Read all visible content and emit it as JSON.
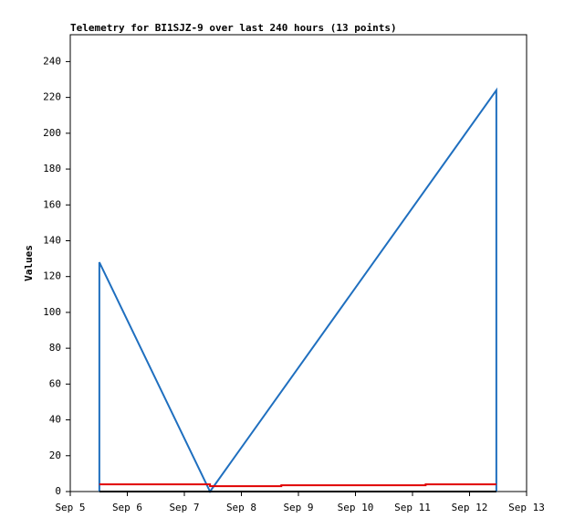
{
  "chart_data": {
    "type": "line",
    "title": "Telemetry for BI1SJZ-9 over last 240 hours (13 points)",
    "y_label": "Values",
    "xlim": [
      5,
      13
    ],
    "xticks": [
      {
        "value": 5,
        "label": "Sep 5"
      },
      {
        "value": 6,
        "label": "Sep 6"
      },
      {
        "value": 7,
        "label": "Sep 7"
      },
      {
        "value": 8,
        "label": "Sep 8"
      },
      {
        "value": 9,
        "label": "Sep 9"
      },
      {
        "value": 10,
        "label": "Sep 10"
      },
      {
        "value": 11,
        "label": "Sep 11"
      },
      {
        "value": 12,
        "label": "Sep 12"
      },
      {
        "value": 13,
        "label": "Sep 13"
      }
    ],
    "ylim": [
      0,
      255
    ],
    "yticks": [
      0,
      20,
      40,
      60,
      80,
      100,
      120,
      140,
      160,
      180,
      200,
      220,
      240
    ],
    "series": [
      {
        "color": "#1f6fbf",
        "x": [
          5.51,
          5.51,
          7.45,
          12.47,
          12.47
        ],
        "values": [
          0,
          128,
          0,
          224,
          0
        ]
      },
      {
        "color": "#e00000",
        "x": [
          5.51,
          7.45,
          7.45,
          8.7,
          8.7,
          11.23,
          11.23,
          12.47
        ],
        "values": [
          4,
          4,
          3,
          3,
          3.5,
          3.5,
          4,
          4
        ]
      },
      {
        "color": "#000000",
        "x": [
          5.51,
          12.47
        ],
        "values": [
          0,
          0
        ]
      }
    ]
  }
}
